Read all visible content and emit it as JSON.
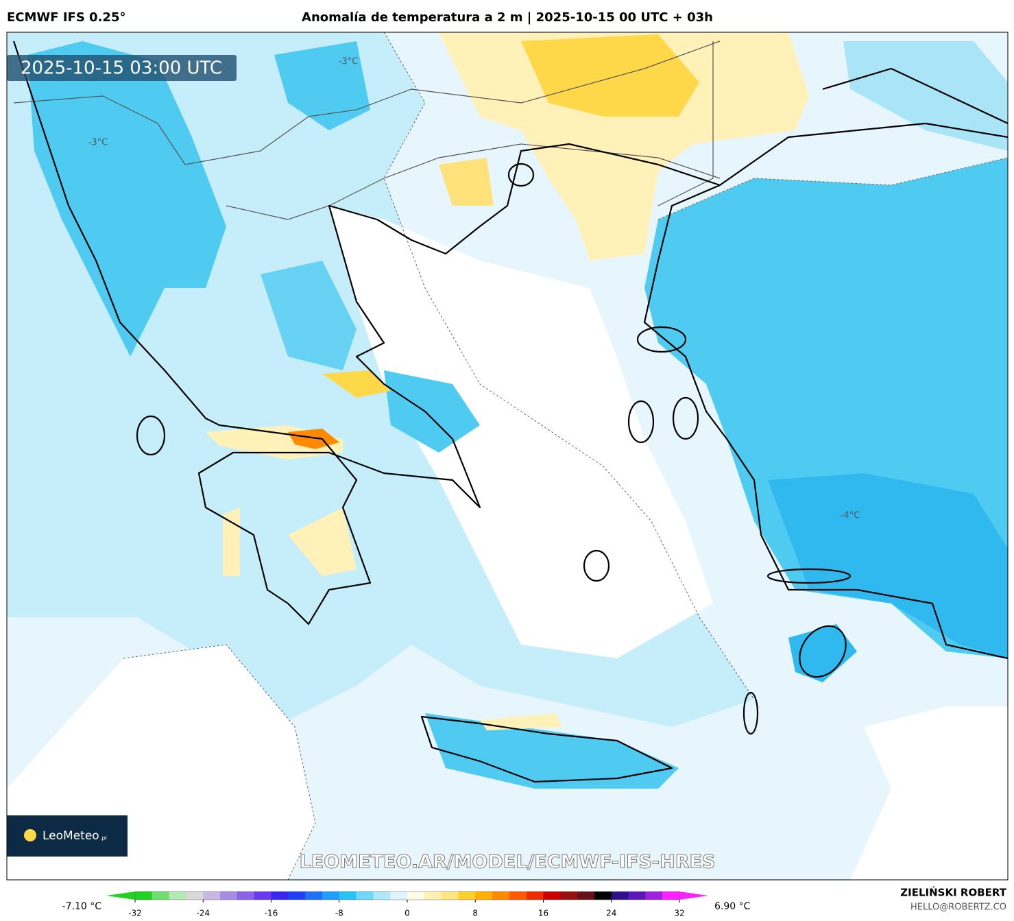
{
  "header": {
    "model": "ECMWF IFS 0.25°",
    "title": "Anomalía de temperatura a 2 m | 2025-10-15 00 UTC + 03h"
  },
  "map": {
    "valid_time": "2025-10-15 03:00 UTC",
    "contour_labels": [
      "-3°C",
      "-3°C",
      "-4°C"
    ],
    "watermark": "LEOMETEO.AR/MODEL/ECMWF-IFS-HRES",
    "logo": "LeoMeteo",
    "logo_suffix": ".pl"
  },
  "colorbar": {
    "min_label": "-7.10 °C",
    "max_label": "6.90 °C",
    "ticks": [
      -32,
      -24,
      -16,
      -8,
      0,
      8,
      16,
      24,
      32
    ],
    "colors": [
      "#1fd41f",
      "#6fde6f",
      "#b4e9b4",
      "#d9d9d9",
      "#c8b8e6",
      "#a88be6",
      "#8a62ea",
      "#6a3af0",
      "#3a26f2",
      "#1f3ff6",
      "#1f6ff9",
      "#1f9ffb",
      "#26c4f5",
      "#6dd8f8",
      "#aee7fa",
      "#dff4fc",
      "#fffbe6",
      "#fff2b0",
      "#ffe680",
      "#ffd02a",
      "#ffb000",
      "#ff8a00",
      "#ff5a00",
      "#ee2a00",
      "#cc0000",
      "#991010",
      "#661018",
      "#000000",
      "#30108a",
      "#5a18b8",
      "#a020e0",
      "#ff20ff"
    ]
  },
  "footer": {
    "author": "ZIELIŃSKI ROBERT",
    "email": "HELLO@ROBERTZ.CO"
  }
}
